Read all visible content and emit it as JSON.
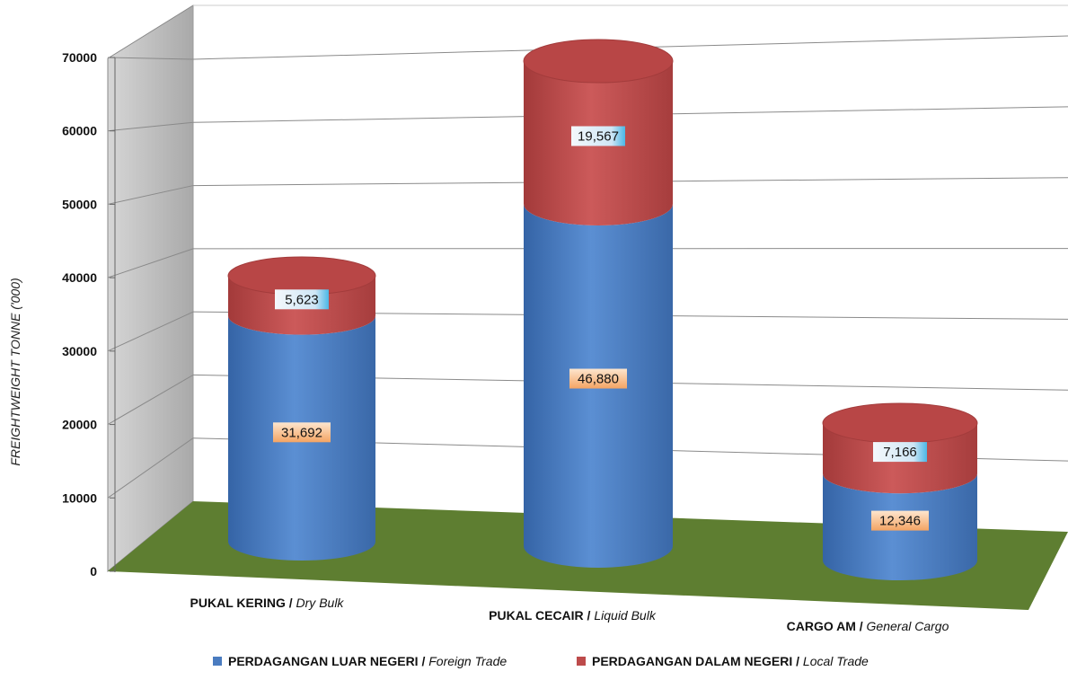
{
  "chart_data": {
    "type": "bar",
    "style": "3d-stacked-cylinder",
    "ylabel": "FREIGHTWEIGHT TONNE ('000)",
    "ylim": [
      0,
      70000
    ],
    "yticks": [
      0,
      10000,
      20000,
      30000,
      40000,
      50000,
      60000,
      70000
    ],
    "grid": true,
    "legend_position": "bottom",
    "categories": [
      {
        "bold": "PUKAL KERING",
        "sep": " / ",
        "italic": "Dry Bulk"
      },
      {
        "bold": "PUKAL CECAIR",
        "sep": " / ",
        "italic": "Liquid Bulk"
      },
      {
        "bold": "CARGO AM",
        "sep": " / ",
        "italic": "General Cargo"
      }
    ],
    "series": [
      {
        "name_bold": "PERDAGANGAN LUAR NEGERI",
        "name_sep": " / ",
        "name_italic": "Foreign Trade",
        "color": "#4a7cc0",
        "label_bg": "#f7b27a",
        "values": [
          31692,
          46880,
          12346
        ],
        "labels": [
          "31,692",
          "46,880",
          "12,346"
        ]
      },
      {
        "name_bold": "PERDAGANGAN DALAM NEGERI",
        "name_sep": " / ",
        "name_italic": "Local Trade",
        "color": "#bd4b4b",
        "label_bg": "#7fc4e6",
        "values": [
          5623,
          19567,
          7166
        ],
        "labels": [
          "5,623",
          "19,567",
          "7,166"
        ]
      }
    ],
    "colors": {
      "floor": "#5e7e31",
      "side_wall": "#bcbcbc",
      "back_wall": "#ffffff",
      "grid": "#8a8a8a"
    }
  }
}
